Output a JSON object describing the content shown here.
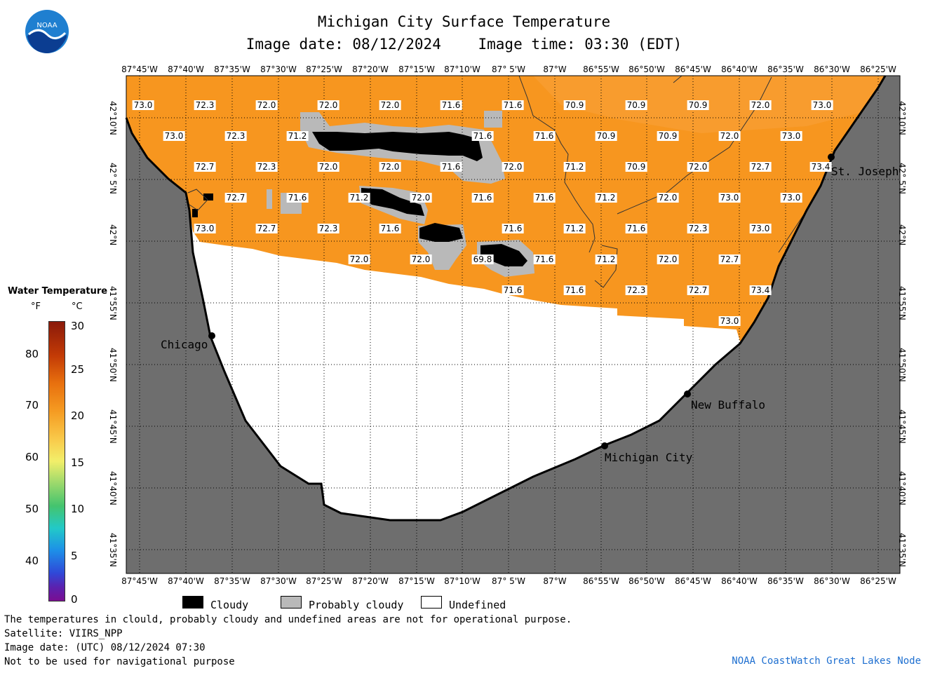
{
  "header": {
    "title": "Michigan City Surface Temperature",
    "image_date": "Image date: 08/12/2024",
    "image_time": "Image time: 03:30 (EDT)"
  },
  "logo": {
    "text": "NOAA",
    "icon": "noaa-logo-icon"
  },
  "lon_labels": [
    "87°45'W",
    "87°40'W",
    "87°35'W",
    "87°30'W",
    "87°25'W",
    "87°20'W",
    "87°15'W",
    "87°10'W",
    "87° 5'W",
    "87°W",
    "86°55'W",
    "86°50'W",
    "86°45'W",
    "86°40'W",
    "86°35'W",
    "86°30'W",
    "86°25'W"
  ],
  "lat_labels": [
    "42°10'N",
    "42° 5'N",
    "42°N",
    "41°55'N",
    "41°50'N",
    "41°45'N",
    "41°40'N",
    "41°35'N"
  ],
  "temperatures": [
    [
      "73.0",
      "72.3",
      "72.0",
      "72.0",
      "72.0",
      "71.6",
      "71.6",
      "70.9",
      "70.9",
      "70.9",
      "72.0",
      "73.0"
    ],
    [
      "73.0",
      "72.3",
      "71.2",
      "71.6",
      "71.6",
      "70.9",
      "70.9",
      "72.0",
      "73.0"
    ],
    [
      "72.7",
      "72.3",
      "72.0",
      "72.0",
      "71.6",
      "72.0",
      "71.2",
      "70.9",
      "72.0",
      "72.7",
      "73.4"
    ],
    [
      "72.7",
      "71.6",
      "71.2",
      "72.0",
      "71.6",
      "71.6",
      "71.2",
      "72.0",
      "73.0",
      "73.0"
    ],
    [
      "73.0",
      "72.7",
      "72.3",
      "71.6",
      "71.6",
      "71.2",
      "71.6",
      "72.3",
      "73.0"
    ],
    [
      "72.0",
      "72.0",
      "69.8",
      "71.6",
      "71.2",
      "72.0",
      "72.7"
    ],
    [
      "71.6",
      "71.6",
      "72.3",
      "72.7",
      "73.4"
    ],
    [
      "73.0"
    ]
  ],
  "cities": {
    "chicago": "Chicago",
    "st_joseph": "St. Joseph",
    "new_buffalo": "New Buffalo",
    "michigan_city": "Michigan City"
  },
  "legend": {
    "title": "Water Temperature",
    "unit_f": "°F",
    "unit_c": "°C",
    "f_ticks": [
      "80",
      "70",
      "60",
      "50",
      "40"
    ],
    "c_ticks": [
      "30",
      "25",
      "20",
      "15",
      "10",
      "5",
      "0"
    ],
    "colors": {
      "orange": "#f7941d",
      "land": "#6e6e6e"
    }
  },
  "key": {
    "cloudy": "Cloudy",
    "probably_cloudy": "Probably cloudy",
    "undefined": "Undefined"
  },
  "footer": {
    "line1": "The temperatures in clould, probably cloudy and undefined areas are not for operational purpose.",
    "line2": "Satellite: VIIRS_NPP",
    "line3": "Image date: (UTC) 08/12/2024  07:30",
    "line4": "Not to be used for navigational purpose",
    "credit": "NOAA CoastWatch Great Lakes Node"
  }
}
